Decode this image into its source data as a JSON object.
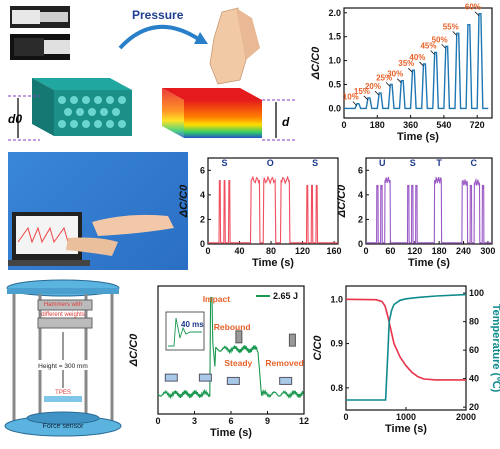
{
  "panel_a": {
    "pressure_label": "Pressure",
    "d0_label": "d0",
    "d_label": "d"
  },
  "panel_f": {
    "hammers_label_1": "Hammers with",
    "hammers_label_2": "different weights",
    "height_label": "Height = 300 mm",
    "tpes_label": "TPES",
    "sensor_label": "Force sensor"
  },
  "chart_data": [
    {
      "id": "chart-b",
      "type": "line",
      "title": "",
      "xlabel": "Time (s)",
      "ylabel": "ΔC/C0",
      "xlim": [
        0,
        800
      ],
      "ylim": [
        -0.2,
        2.1
      ],
      "xticks": [
        0,
        180,
        360,
        540,
        720
      ],
      "yticks": [
        0.0,
        0.5,
        1.0,
        1.5,
        2.0
      ],
      "color": "#1f77b4",
      "series": [
        {
          "x": [
            0,
            60,
            70,
            80,
            90,
            120,
            130,
            140,
            150,
            180,
            190,
            200,
            210,
            240,
            250,
            260,
            270,
            300,
            310,
            320,
            330,
            360,
            370,
            380,
            390,
            420,
            430,
            440,
            450,
            480,
            490,
            500,
            510,
            540,
            550,
            560,
            570,
            600,
            610,
            620,
            630,
            660,
            670,
            680,
            690,
            720,
            730,
            740,
            750,
            780
          ],
          "y": [
            0,
            0,
            0.1,
            0.1,
            0,
            0,
            0.22,
            0.22,
            0,
            0,
            0.32,
            0.32,
            0,
            0,
            0.5,
            0.5,
            0,
            0,
            0.58,
            0.58,
            0,
            0,
            0.8,
            0.8,
            0,
            0,
            0.93,
            0.93,
            0,
            0,
            1.17,
            1.17,
            0,
            0,
            1.3,
            1.3,
            0,
            0,
            1.57,
            1.57,
            0,
            0,
            1.75,
            1.75,
            0,
            0,
            1.98,
            1.98,
            0,
            0
          ]
        }
      ],
      "annotations": [
        "10%",
        "15%",
        "20%",
        "25%",
        "30%",
        "35%",
        "40%",
        "45%",
        "50%",
        "55%",
        "60%"
      ],
      "annotation_x": [
        80,
        140,
        200,
        260,
        320,
        380,
        440,
        500,
        560,
        620,
        740
      ],
      "annotation_y": [
        0.1,
        0.22,
        0.32,
        0.5,
        0.58,
        0.8,
        0.93,
        1.17,
        1.3,
        1.57,
        1.98
      ]
    },
    {
      "id": "chart-d",
      "type": "line",
      "title": "",
      "xlabel": "Time (s)",
      "ylabel": "ΔC/C0",
      "xlim": [
        0,
        165
      ],
      "ylim": [
        0,
        7
      ],
      "xticks": [
        0,
        40,
        80,
        120,
        160
      ],
      "yticks": [
        0,
        2,
        4,
        6
      ],
      "color": "#ef4f60",
      "letters": [
        "S",
        "O",
        "S"
      ],
      "letter_x": [
        21,
        79,
        136
      ]
    },
    {
      "id": "chart-e",
      "type": "line",
      "title": "",
      "xlabel": "Time (s)",
      "ylabel": "ΔC/C0",
      "xlim": [
        0,
        310
      ],
      "ylim": [
        0,
        7
      ],
      "xticks": [
        0,
        60,
        120,
        180,
        240,
        300
      ],
      "yticks": [
        0,
        2,
        4,
        6
      ],
      "color": "#9b59c6",
      "letters": [
        "U",
        "S",
        "T",
        "C"
      ],
      "letter_x": [
        40,
        115,
        180,
        265
      ]
    },
    {
      "id": "chart-g",
      "type": "line",
      "title": "",
      "xlabel": "Time (s)",
      "ylabel": "ΔC/C0",
      "xlim": [
        0,
        12
      ],
      "ylim": [
        -0.12,
        0.65
      ],
      "xticks": [
        0,
        3,
        6,
        9,
        12
      ],
      "color": "#1a9850",
      "legend": "2.65 J",
      "inset_label": "40 ms",
      "annotations": [
        "Impact",
        "Rebound",
        "Steady",
        "Removed"
      ]
    },
    {
      "id": "chart-h",
      "type": "line",
      "title": "",
      "xlabel": "Time (s)",
      "ylabel": "C/C0",
      "ylabel_right": "Temperature (℃)",
      "xlim": [
        0,
        2000
      ],
      "ylim": [
        0.75,
        1.03
      ],
      "ylim_right": [
        18,
        105
      ],
      "xticks": [
        0,
        1000,
        2000
      ],
      "yticks": [
        0.8,
        0.9,
        1.0
      ],
      "yticks_right": [
        20,
        40,
        60,
        80,
        100
      ],
      "series": [
        {
          "name": "",
          "axis": "left",
          "color": "#e8334a",
          "x": [
            0,
            500,
            600,
            650,
            700,
            750,
            800,
            900,
            1000,
            1100,
            1200,
            1300,
            1500,
            2000
          ],
          "y": [
            1.0,
            0.999,
            0.995,
            0.985,
            0.96,
            0.93,
            0.9,
            0.87,
            0.85,
            0.835,
            0.825,
            0.82,
            0.818,
            0.818
          ]
        },
        {
          "name": "",
          "axis": "right",
          "color": "#0f8b8d",
          "x": [
            0,
            600,
            660,
            700,
            720,
            760,
            800,
            900,
            1000,
            1200,
            1500,
            2000
          ],
          "y": [
            25,
            25,
            25,
            60,
            80,
            88,
            92,
            95,
            96,
            97,
            98,
            99
          ]
        }
      ]
    }
  ]
}
